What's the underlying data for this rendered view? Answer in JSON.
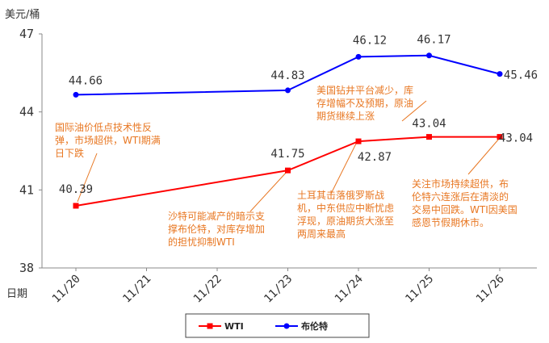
{
  "chart_data": {
    "type": "line",
    "ylabel": "美元/桶",
    "xlabel": "日期",
    "categories": [
      "11/20",
      "11/21",
      "11/22",
      "11/23",
      "11/24",
      "11/25",
      "11/26"
    ],
    "ylim": [
      38,
      47
    ],
    "yticks": [
      "38",
      "41",
      "44",
      "47"
    ],
    "series": [
      {
        "name": "WTI",
        "color": "#ff0000",
        "marker": "square",
        "points": [
          {
            "x": "11/20",
            "y": 40.39
          },
          {
            "x": "11/23",
            "y": 41.75
          },
          {
            "x": "11/24",
            "y": 42.87
          },
          {
            "x": "11/25",
            "y": 43.04
          },
          {
            "x": "11/26",
            "y": 43.04
          }
        ],
        "labels": [
          "40.39",
          "41.75",
          "42.87",
          "43.04",
          "43.04"
        ]
      },
      {
        "name": "布伦特",
        "color": "#0000ff",
        "marker": "circle",
        "points": [
          {
            "x": "11/20",
            "y": 44.66
          },
          {
            "x": "11/23",
            "y": 44.83
          },
          {
            "x": "11/24",
            "y": 46.12
          },
          {
            "x": "11/25",
            "y": 46.17
          },
          {
            "x": "11/26",
            "y": 45.46
          }
        ],
        "labels": [
          "44.66",
          "44.83",
          "46.12",
          "46.17",
          "45.46"
        ]
      }
    ],
    "annotations": [
      {
        "lines": [
          "国际油价低点技术性反",
          "弹，市场超供，WTI期满",
          "日下跌"
        ]
      },
      {
        "lines": [
          "沙特可能减产的暗示支",
          "撑布伦特，对库存增加",
          "的担忧抑制WTI"
        ]
      },
      {
        "lines": [
          "土耳其击落俄罗斯战",
          "机，中东供应中断忧虑",
          "浮现，原油期货大涨至",
          "两周来最高"
        ]
      },
      {
        "lines": [
          "美国钻井平台减少，库",
          "存增幅不及预期，原油",
          "期货继续上涨"
        ]
      },
      {
        "lines": [
          "关注市场持续超供，布",
          "伦特六连涨后在清淡的",
          "交易中回跌。WTI因美国",
          "感恩节假期休市。"
        ]
      }
    ],
    "legend": "bottom-center",
    "grid": false
  }
}
